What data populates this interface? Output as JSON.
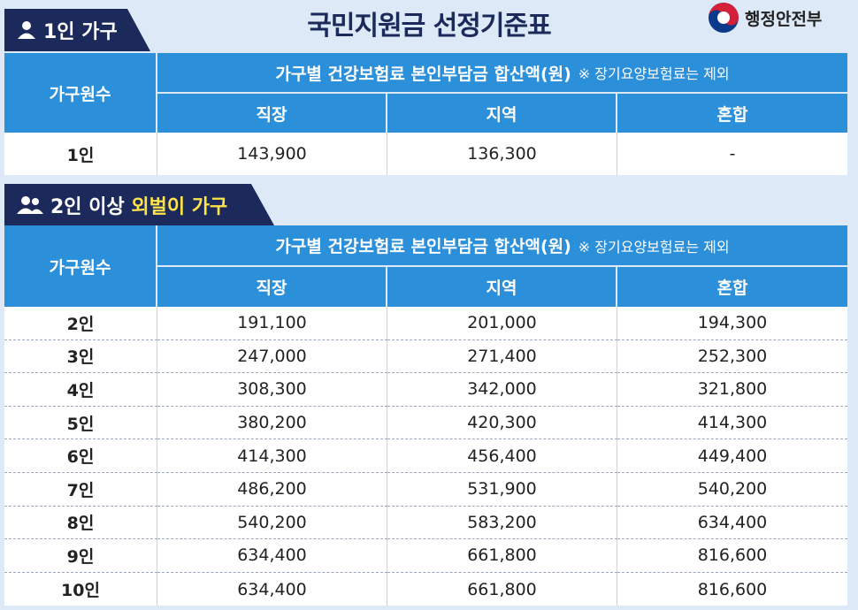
{
  "header": {
    "title": "국민지원금 선정기준표",
    "logo": "행정안전부"
  },
  "sections": [
    {
      "label": "1인 가구",
      "table": {
        "row_header": "가구원수",
        "group_header": "가구별 건강보험료 본인부담금 합산액(원)",
        "note": "※ 장기요양보험료는 제외",
        "columns": [
          "직장",
          "지역",
          "혼합"
        ],
        "rows": [
          [
            "1인",
            "143,900",
            "136,300",
            "-"
          ]
        ]
      }
    },
    {
      "label": "2인 이상",
      "highlight": "외벌이 가구",
      "table": {
        "row_header": "가구원수",
        "group_header": "가구별 건강보험료 본인부담금 합산액(원)",
        "note": "※ 장기요양보험료는 제외",
        "columns": [
          "직장",
          "지역",
          "혼합"
        ],
        "rows": [
          [
            "2인",
            "191,100",
            "201,000",
            "194,300"
          ],
          [
            "3인",
            "247,000",
            "271,400",
            "252,300"
          ],
          [
            "4인",
            "308,300",
            "342,000",
            "321,800"
          ],
          [
            "5인",
            "380,200",
            "420,300",
            "414,300"
          ],
          [
            "6인",
            "414,300",
            "456,400",
            "449,400"
          ],
          [
            "7인",
            "486,200",
            "531,900",
            "540,200"
          ],
          [
            "8인",
            "540,200",
            "583,200",
            "634,400"
          ],
          [
            "9인",
            "634,400",
            "661,800",
            "816,600"
          ],
          [
            "10인",
            "634,400",
            "661,800",
            "816,600"
          ]
        ]
      }
    }
  ]
}
